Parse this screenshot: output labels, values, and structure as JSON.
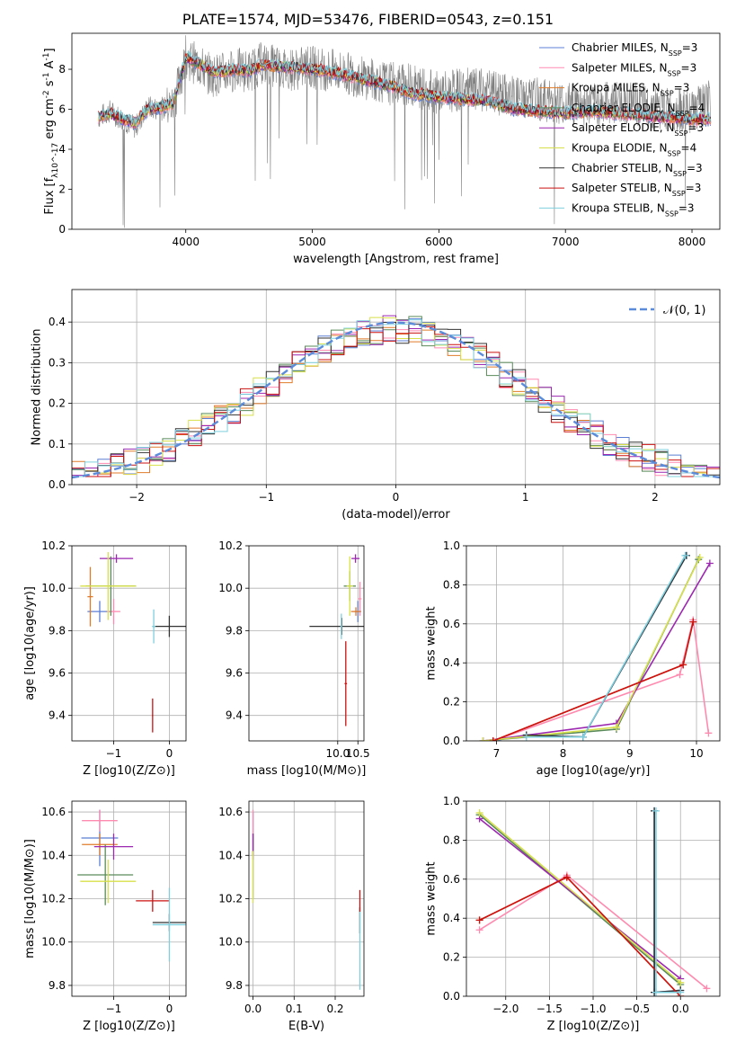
{
  "title": "PLATE=1574, MJD=53476, FIBERID=0543, z=0.151",
  "models": [
    {
      "name": "Chabrier MILES, N_SSP=3",
      "color": "#5b7fd4"
    },
    {
      "name": "Salpeter MILES, N_SSP=3",
      "color": "#ff8ab0"
    },
    {
      "name": "Kroupa MILES, N_SSP=3",
      "color": "#e07b2a"
    },
    {
      "name": "Chabrier ELODIE, N_SSP=4",
      "color": "#5a8a5a"
    },
    {
      "name": "Salpeter ELODIE, N_SSP=3",
      "color": "#9c27b0"
    },
    {
      "name": "Kroupa ELODIE, N_SSP=4",
      "color": "#d7e04a"
    },
    {
      "name": "Chabrier STELIB, N_SSP=3",
      "color": "#333333"
    },
    {
      "name": "Salpeter STELIB, N_SSP=3",
      "color": "#cc1111"
    },
    {
      "name": "Kroupa STELIB, N_SSP=3",
      "color": "#7fd0df"
    }
  ],
  "chart_data": [
    {
      "id": "spectrum",
      "type": "line",
      "xlabel": "wavelength [Angstrom, rest frame]",
      "ylabel": "Flux [f_λ10^-17 erg cm^-2 s^-1 A^-1]",
      "xlim": [
        3100,
        8220
      ],
      "ylim": [
        0,
        9.8
      ],
      "xticks": [
        4000,
        5000,
        6000,
        7000,
        8000
      ],
      "yticks": [
        0,
        2,
        4,
        6,
        8
      ],
      "grid": false,
      "legend": "right",
      "data_x": [
        3310,
        3400,
        3500,
        3600,
        3700,
        3800,
        3900,
        4000,
        4100,
        4200,
        4300,
        4400,
        4500,
        4600,
        4800,
        5000,
        5200,
        5400,
        5600,
        5800,
        6000,
        6200,
        6400,
        6600,
        6800,
        7000,
        7200,
        7400,
        7600,
        7800,
        8000,
        8150
      ],
      "data_y": [
        5.6,
        5.9,
        5.5,
        5.1,
        6.1,
        6.0,
        6.2,
        8.6,
        8.2,
        7.7,
        7.8,
        8.0,
        7.9,
        8.3,
        8.0,
        8.1,
        7.9,
        7.6,
        7.3,
        7.2,
        6.8,
        7.0,
        6.9,
        6.6,
        6.5,
        6.3,
        6.2,
        6.4,
        6.2,
        6.0,
        5.9,
        6.4
      ],
      "model_y": [
        5.6,
        5.8,
        5.5,
        5.3,
        6.0,
        6.1,
        6.3,
        8.6,
        8.3,
        7.9,
        7.9,
        8.0,
        7.9,
        8.2,
        8.1,
        8.0,
        7.8,
        7.5,
        7.2,
        6.8,
        6.6,
        6.5,
        6.4,
        6.0,
        5.9,
        5.8,
        5.9,
        5.8,
        5.7,
        5.6,
        5.5,
        5.5
      ]
    },
    {
      "id": "residual-hist",
      "type": "histogram",
      "xlabel": "(data-model)/error",
      "ylabel": "Normed distribution",
      "xlim": [
        -2.5,
        2.5
      ],
      "ylim": [
        0,
        0.48
      ],
      "xticks": [
        -2,
        -1,
        0,
        1,
        2
      ],
      "yticks": [
        0.0,
        0.1,
        0.2,
        0.3,
        0.4
      ],
      "grid": true,
      "legend": "top-right",
      "reference_curve": {
        "name": "N(0,1)",
        "mean": 0,
        "sigma": 1
      },
      "bin_edges_range": [
        -2.5,
        2.5
      ],
      "bins": 50
    },
    {
      "id": "age-vs-Z",
      "type": "errorbar",
      "xlabel": "Z [log10(Z/Z⊙)]",
      "ylabel": "age  [log10(age/yr)]",
      "xlim": [
        -1.75,
        0.3
      ],
      "ylim": [
        9.28,
        10.2
      ],
      "xticks": [
        -1,
        0
      ],
      "yticks": [
        9.4,
        9.6,
        9.8,
        10.0,
        10.2
      ],
      "grid": true,
      "points": [
        {
          "model": 0,
          "x": -1.25,
          "y": 9.89,
          "xerr": 0.22,
          "yerr": 0.05
        },
        {
          "model": 1,
          "x": -1.0,
          "y": 9.89,
          "xerr": 0.12,
          "yerr": 0.06
        },
        {
          "model": 2,
          "x": -1.42,
          "y": 9.96,
          "xerr": 0.05,
          "yerr": 0.14
        },
        {
          "model": 3,
          "x": -1.05,
          "y": 10.01,
          "xerr": 0.45,
          "yerr": 0.14
        },
        {
          "model": 4,
          "x": -0.95,
          "y": 10.14,
          "xerr": 0.3,
          "yerr": 0.02
        },
        {
          "model": 5,
          "x": -1.1,
          "y": 10.01,
          "xerr": 0.5,
          "yerr": 0.16
        },
        {
          "model": 6,
          "x": 0.0,
          "y": 9.82,
          "xerr": 0.3,
          "yerr": 0.05
        },
        {
          "model": 7,
          "x": -0.3,
          "y": 9.4,
          "xerr": 0.01,
          "yerr": 0.08
        },
        {
          "model": 8,
          "x": -0.28,
          "y": 9.82,
          "xerr": 0.03,
          "yerr": 0.08
        }
      ]
    },
    {
      "id": "age-vs-mass",
      "type": "errorbar",
      "xlabel": "mass [log10(M/M⊙)]",
      "ylabel": "",
      "xlim": [
        7.8,
        10.65
      ],
      "ylim": [
        9.28,
        10.2
      ],
      "xticks": [
        10.0,
        10.5
      ],
      "yticks": [
        9.4,
        9.6,
        9.8,
        10.0,
        10.2
      ],
      "grid": true,
      "points": [
        {
          "model": 0,
          "x": 10.5,
          "y": 9.89,
          "xerr": 0.08,
          "yerr": 0.05
        },
        {
          "model": 1,
          "x": 10.55,
          "y": 9.95,
          "xerr": 0.04,
          "yerr": 0.08
        },
        {
          "model": 2,
          "x": 10.45,
          "y": 9.89,
          "xerr": 0.12,
          "yerr": 0.02
        },
        {
          "model": 3,
          "x": 10.3,
          "y": 10.01,
          "xerr": 0.15,
          "yerr": 0.07
        },
        {
          "model": 4,
          "x": 10.44,
          "y": 10.14,
          "xerr": 0.1,
          "yerr": 0.02
        },
        {
          "model": 5,
          "x": 10.3,
          "y": 10.01,
          "xerr": 0.08,
          "yerr": 0.14
        },
        {
          "model": 6,
          "x": 10.1,
          "y": 9.82,
          "xerr": 0.8,
          "yerr": 0.04
        },
        {
          "model": 7,
          "x": 10.2,
          "y": 9.55,
          "xerr": 0.03,
          "yerr": 0.2
        },
        {
          "model": 8,
          "x": 10.09,
          "y": 9.82,
          "xerr": 0.02,
          "yerr": 0.06
        }
      ]
    },
    {
      "id": "massweight-vs-age",
      "type": "line",
      "xlabel": "age  [log10(age/yr)]",
      "ylabel": "mass weight",
      "xlim": [
        6.55,
        10.35
      ],
      "ylim": [
        0,
        1.0
      ],
      "xticks": [
        7,
        8,
        9,
        10
      ],
      "yticks": [
        0.0,
        0.2,
        0.4,
        0.6,
        0.8,
        1.0
      ],
      "grid": true,
      "series": [
        {
          "model": 0,
          "x": [
            6.95,
            7.45,
            8.3,
            9.85
          ],
          "y": [
            0.0,
            0.03,
            0.02,
            0.95
          ]
        },
        {
          "model": 1,
          "x": [
            6.95,
            9.75,
            9.95,
            10.18
          ],
          "y": [
            0.0,
            0.34,
            0.62,
            0.04
          ]
        },
        {
          "model": 2,
          "x": [
            6.95,
            9.8,
            9.95
          ],
          "y": [
            0.0,
            0.39,
            0.61
          ]
        },
        {
          "model": 3,
          "x": [
            6.8,
            8.8,
            10.03
          ],
          "y": [
            0.0,
            0.06,
            0.93
          ]
        },
        {
          "model": 4,
          "x": [
            6.8,
            8.8,
            10.2
          ],
          "y": [
            0.0,
            0.09,
            0.91
          ]
        },
        {
          "model": 5,
          "x": [
            6.8,
            8.8,
            10.05
          ],
          "y": [
            0.0,
            0.07,
            0.94
          ]
        },
        {
          "model": 6,
          "x": [
            7.45,
            8.3,
            9.85
          ],
          "y": [
            0.03,
            0.02,
            0.95
          ]
        },
        {
          "model": 7,
          "x": [
            6.95,
            9.8,
            9.95
          ],
          "y": [
            0.0,
            0.39,
            0.61
          ]
        },
        {
          "model": 8,
          "x": [
            7.45,
            8.3,
            9.83
          ],
          "y": [
            0.02,
            0.02,
            0.95
          ]
        }
      ]
    },
    {
      "id": "mass-vs-Z",
      "type": "errorbar",
      "xlabel": "Z [log10(Z/Z⊙)]",
      "ylabel": "mass [log10(M/M⊙)]",
      "xlim": [
        -1.75,
        0.3
      ],
      "ylim": [
        9.75,
        10.65
      ],
      "xticks": [
        -1,
        0
      ],
      "yticks": [
        9.8,
        10.0,
        10.2,
        10.4,
        10.6
      ],
      "grid": true,
      "points": [
        {
          "model": 0,
          "x": -1.25,
          "y": 10.48,
          "xerr": 0.33,
          "yerr": 0.13
        },
        {
          "model": 1,
          "x": -1.25,
          "y": 10.56,
          "xerr": 0.32,
          "yerr": 0.05
        },
        {
          "model": 2,
          "x": -1.25,
          "y": 10.45,
          "xerr": 0.32,
          "yerr": 0.05
        },
        {
          "model": 3,
          "x": -1.15,
          "y": 10.31,
          "xerr": 0.5,
          "yerr": 0.14
        },
        {
          "model": 4,
          "x": -1.0,
          "y": 10.44,
          "xerr": 0.35,
          "yerr": 0.06
        },
        {
          "model": 5,
          "x": -1.1,
          "y": 10.28,
          "xerr": 0.5,
          "yerr": 0.1
        },
        {
          "model": 6,
          "x": 0.0,
          "y": 10.09,
          "xerr": 0.3,
          "yerr": 0.04
        },
        {
          "model": 7,
          "x": -0.3,
          "y": 10.19,
          "xerr": 0.3,
          "yerr": 0.05
        },
        {
          "model": 8,
          "x": 0.0,
          "y": 10.08,
          "xerr": 0.3,
          "yerr": 0.17
        }
      ]
    },
    {
      "id": "mass-vs-EBV",
      "type": "errorbar",
      "xlabel": "E(B-V)",
      "ylabel": "",
      "xlim": [
        -0.01,
        0.27
      ],
      "ylim": [
        9.75,
        10.65
      ],
      "xticks": [
        0.0,
        0.1,
        0.2
      ],
      "yticks": [
        9.8,
        10.0,
        10.2,
        10.4,
        10.6
      ],
      "grid": true,
      "points": [
        {
          "model": 0,
          "x": 0.0,
          "y": 10.5,
          "xerr": 0,
          "yerr": 0.1
        },
        {
          "model": 1,
          "x": 0.0,
          "y": 10.55,
          "xerr": 0,
          "yerr": 0.06
        },
        {
          "model": 2,
          "x": 0.0,
          "y": 10.45,
          "xerr": 0,
          "yerr": 0.05
        },
        {
          "model": 3,
          "x": 0.0,
          "y": 10.35,
          "xerr": 0,
          "yerr": 0.15
        },
        {
          "model": 4,
          "x": 0.0,
          "y": 10.44,
          "xerr": 0,
          "yerr": 0.06
        },
        {
          "model": 5,
          "x": 0.0,
          "y": 10.3,
          "xerr": 0,
          "yerr": 0.12
        },
        {
          "model": 6,
          "x": 0.26,
          "y": 10.1,
          "xerr": 0,
          "yerr": 0.06
        },
        {
          "model": 7,
          "x": 0.26,
          "y": 10.19,
          "xerr": 0,
          "yerr": 0.05
        },
        {
          "model": 8,
          "x": 0.26,
          "y": 9.96,
          "xerr": 0,
          "yerr": 0.18
        }
      ]
    },
    {
      "id": "massweight-vs-Z",
      "type": "line",
      "xlabel": "Z [log10(Z/Z⊙)]",
      "ylabel": "mass weight",
      "xlim": [
        -2.45,
        0.45
      ],
      "ylim": [
        0,
        1.0
      ],
      "xticks": [
        -2.0,
        -1.5,
        -1.0,
        -0.5,
        0.0
      ],
      "yticks": [
        0.0,
        0.2,
        0.4,
        0.6,
        0.8,
        1.0
      ],
      "grid": true,
      "series": [
        {
          "model": 0,
          "x": [
            -0.3,
            -0.3,
            0.0
          ],
          "y": [
            0.95,
            0.02,
            0.03
          ]
        },
        {
          "model": 1,
          "x": [
            -2.3,
            -1.3,
            0.3
          ],
          "y": [
            0.34,
            0.62,
            0.04
          ]
        },
        {
          "model": 2,
          "x": [
            -2.3,
            -1.3,
            0.0
          ],
          "y": [
            0.39,
            0.61,
            0.0
          ]
        },
        {
          "model": 3,
          "x": [
            -2.3,
            0.0
          ],
          "y": [
            0.93,
            0.06
          ]
        },
        {
          "model": 4,
          "x": [
            -2.3,
            0.0
          ],
          "y": [
            0.91,
            0.09
          ]
        },
        {
          "model": 5,
          "x": [
            -2.3,
            0.0
          ],
          "y": [
            0.94,
            0.07
          ]
        },
        {
          "model": 6,
          "x": [
            -0.3,
            -0.3,
            0.0
          ],
          "y": [
            0.95,
            0.02,
            0.03
          ]
        },
        {
          "model": 7,
          "x": [
            -2.3,
            -1.3,
            0.0
          ],
          "y": [
            0.39,
            0.61,
            0.0
          ]
        },
        {
          "model": 8,
          "x": [
            -0.28,
            -0.28,
            0.0
          ],
          "y": [
            0.95,
            0.02,
            0.02
          ]
        }
      ]
    }
  ]
}
